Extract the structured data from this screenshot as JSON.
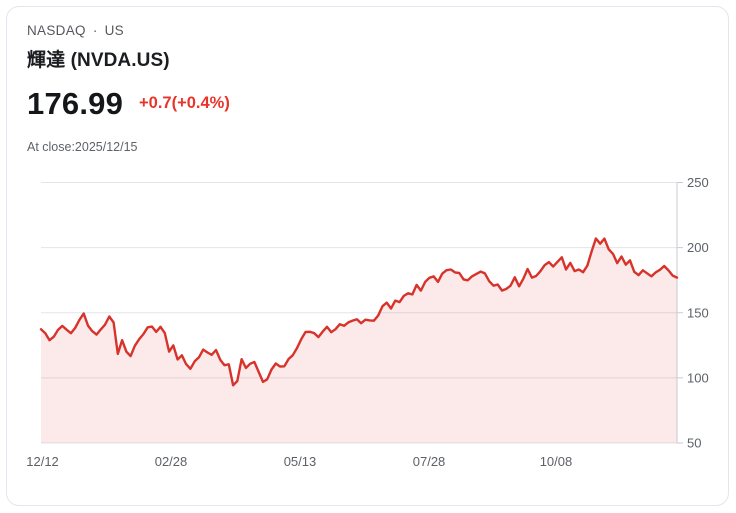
{
  "header": {
    "market": "NASDAQ",
    "separator": "·",
    "region": "US",
    "title": "輝達 (NVDA.US)",
    "price": "176.99",
    "change": "+0.7(+0.4%)",
    "as_of": "At close:2025/12/15"
  },
  "colors": {
    "line": "#d7332b",
    "area": "rgba(216,50,44,0.10)",
    "change_text": "#e93529",
    "grid": "#e3e5ea",
    "axis": "#c7cbd3",
    "tick_label": "#5d6167"
  },
  "chart_data": {
    "type": "area",
    "title": "NVDA.US closing price, 12/12 – 12/15 (1 year)",
    "xlabel": "",
    "ylabel": "",
    "ylim": [
      50,
      250
    ],
    "y_ticks": [
      250,
      200,
      150,
      100,
      50
    ],
    "x_ticks": [
      "12/12",
      "02/28",
      "05/13",
      "07/28",
      "10/08"
    ],
    "legend": "none",
    "grid": "horizontal",
    "values": [
      137.3,
      134.2,
      128.9,
      131.6,
      136.9,
      139.9,
      137.0,
      134.3,
      138.3,
      144.5,
      149.4,
      140.1,
      135.9,
      133.2,
      137.2,
      140.8,
      147.1,
      142.6,
      118.4,
      128.9,
      120.1,
      116.7,
      124.7,
      129.8,
      133.6,
      138.8,
      139.4,
      135.3,
      139.2,
      134.4,
      120.2,
      124.9,
      114.1,
      117.3,
      110.6,
      107.0,
      112.7,
      115.7,
      121.7,
      119.5,
      117.7,
      121.4,
      113.8,
      109.7,
      110.4,
      94.3,
      97.6,
      114.3,
      107.6,
      110.9,
      112.2,
      104.5,
      96.9,
      98.9,
      106.4,
      111.0,
      108.7,
      108.9,
      114.5,
      117.4,
      123.0,
      129.9,
      135.3,
      135.4,
      134.4,
      131.3,
      135.5,
      139.2,
      135.1,
      137.4,
      141.2,
      140.0,
      142.6,
      144.0,
      145.0,
      142.0,
      144.7,
      144.1,
      143.9,
      147.9,
      155.0,
      157.8,
      153.3,
      159.3,
      158.2,
      162.9,
      164.9,
      164.1,
      171.4,
      167.0,
      173.7,
      176.8,
      177.9,
      173.7,
      180.0,
      182.7,
      183.2,
      181.0,
      180.5,
      175.6,
      174.9,
      178.0,
      179.8,
      181.6,
      180.2,
      174.2,
      170.8,
      171.7,
      167.0,
      168.3,
      170.8,
      177.2,
      170.3,
      176.1,
      183.6,
      177.0,
      178.2,
      181.9,
      186.6,
      188.9,
      185.5,
      189.1,
      192.6,
      183.2,
      188.3,
      182.0,
      183.2,
      181.1,
      186.3,
      197.0,
      207.0,
      203.0,
      206.9,
      198.7,
      195.2,
      188.1,
      193.2,
      186.9,
      190.2,
      181.4,
      178.9,
      182.6,
      180.3,
      178.0,
      181.0,
      183.0,
      185.9,
      182.5,
      178.5,
      176.99
    ]
  }
}
